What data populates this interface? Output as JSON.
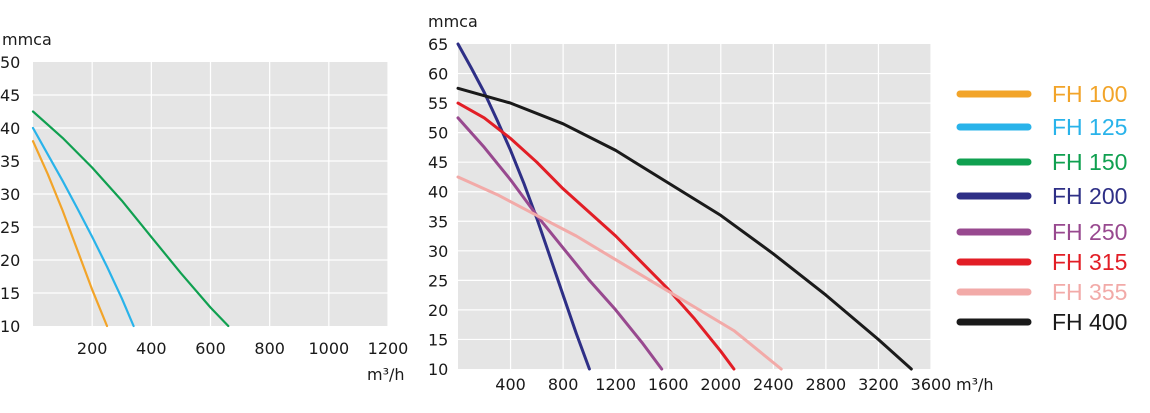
{
  "chart_data": [
    {
      "type": "line",
      "ylabel": "mmca",
      "xlabel": "m³/h",
      "xlim": [
        0,
        1200
      ],
      "ylim": [
        10,
        50
      ],
      "xticks": [
        200,
        400,
        600,
        800,
        1000,
        1200
      ],
      "yticks": [
        50,
        45,
        40,
        35,
        30,
        25,
        20,
        15,
        10
      ],
      "grid": true,
      "series": [
        {
          "name": "FH 100",
          "x": [
            0,
            50,
            100,
            150,
            200,
            250
          ],
          "y": [
            38,
            33,
            27.5,
            21.5,
            15.5,
            10
          ]
        },
        {
          "name": "FH 125",
          "x": [
            0,
            50,
            100,
            150,
            200,
            250,
            300,
            340
          ],
          "y": [
            40,
            36,
            32,
            27.8,
            23.5,
            19,
            14.2,
            10
          ]
        },
        {
          "name": "FH 150",
          "x": [
            0,
            100,
            200,
            300,
            400,
            500,
            600,
            660
          ],
          "y": [
            42.5,
            38.5,
            34,
            29,
            23.5,
            18,
            12.8,
            10
          ]
        }
      ]
    },
    {
      "type": "line",
      "ylabel": "mmca",
      "xlabel": "m³/h",
      "xlim": [
        0,
        3600
      ],
      "ylim": [
        10,
        65
      ],
      "xticks": [
        400,
        800,
        1200,
        1600,
        2000,
        2400,
        2800,
        3200,
        3600
      ],
      "yticks": [
        65,
        60,
        55,
        50,
        45,
        40,
        35,
        30,
        25,
        20,
        15,
        10
      ],
      "grid": true,
      "legend": "right",
      "series": [
        {
          "name": "FH 200",
          "x": [
            0,
            100,
            200,
            300,
            400,
            500,
            600,
            700,
            800,
            900,
            1000
          ],
          "y": [
            65,
            61,
            56.8,
            52,
            47,
            41.5,
            35.5,
            29,
            22.5,
            16,
            10
          ]
        },
        {
          "name": "FH 250",
          "x": [
            0,
            200,
            400,
            600,
            800,
            1000,
            1200,
            1400,
            1550
          ],
          "y": [
            52.5,
            47.5,
            42,
            36,
            30.5,
            25,
            20,
            14.5,
            10
          ]
        },
        {
          "name": "FH 315",
          "x": [
            0,
            200,
            400,
            600,
            800,
            1000,
            1200,
            1400,
            1600,
            1800,
            2000,
            2100
          ],
          "y": [
            55,
            52.5,
            49,
            45,
            40.5,
            36.5,
            32.5,
            28,
            23.5,
            18.5,
            13,
            10
          ]
        },
        {
          "name": "FH 355",
          "x": [
            0,
            300,
            600,
            900,
            1200,
            1500,
            1800,
            2100,
            2460
          ],
          "y": [
            42.5,
            39.5,
            36,
            32.5,
            28.5,
            24.5,
            20.5,
            16.5,
            10
          ]
        },
        {
          "name": "FH 400",
          "x": [
            0,
            400,
            800,
            1200,
            1600,
            2000,
            2400,
            2800,
            3200,
            3450
          ],
          "y": [
            57.5,
            55,
            51.5,
            47,
            41.5,
            36,
            29.5,
            22.5,
            15,
            10
          ]
        }
      ]
    }
  ],
  "legend": [
    {
      "label": "FH 100",
      "color": "#f2a429",
      "text_color": "#f2a429"
    },
    {
      "label": "FH 125",
      "color": "#29b3ea",
      "text_color": "#29b3ea"
    },
    {
      "label": "FH 150",
      "color": "#10a050",
      "text_color": "#10a050"
    },
    {
      "label": "FH 200",
      "color": "#2e2f86",
      "text_color": "#2e2f86"
    },
    {
      "label": "FH 250",
      "color": "#98498f",
      "text_color": "#98498f"
    },
    {
      "label": "FH 315",
      "color": "#e21e26",
      "text_color": "#e21e26"
    },
    {
      "label": "FH 355",
      "color": "#f2aaa8",
      "text_color": "#f2aaa8"
    },
    {
      "label": "FH 400",
      "color": "#1a1a1a",
      "text_color": "#1a1a1a"
    }
  ],
  "colors": {
    "plot_bg": "#e5e5e5",
    "grid": "#ffffff"
  }
}
